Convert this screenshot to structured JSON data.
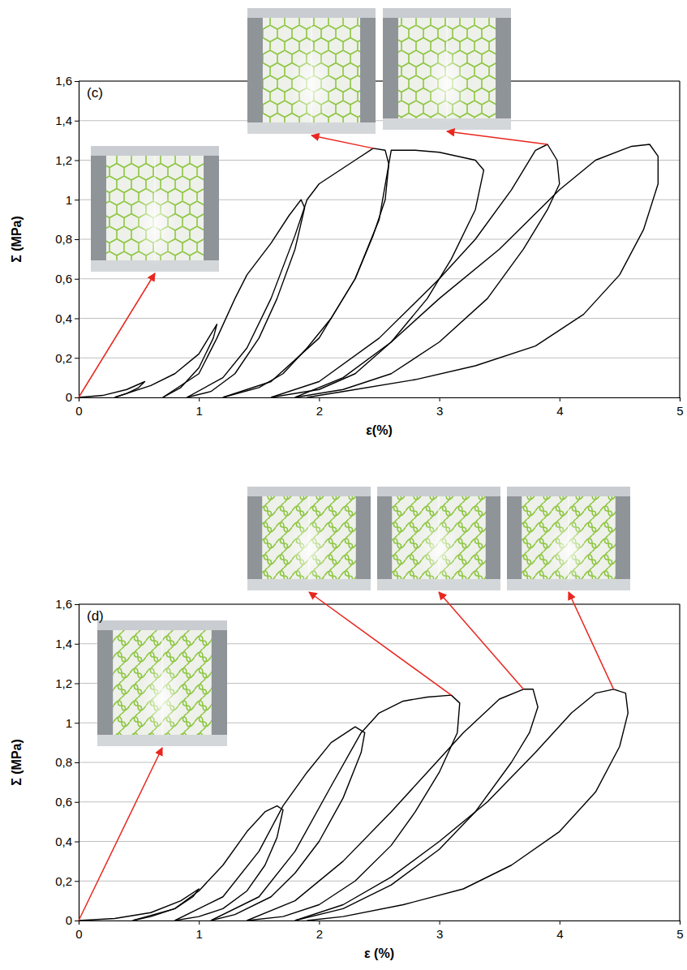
{
  "chart_data": [
    {
      "type": "line",
      "title": "(c)",
      "x_label": "ε(%)",
      "y_label": "Σ (MPa)",
      "xlim": [
        0,
        5
      ],
      "xticks": [
        0,
        1,
        2,
        3,
        4,
        5
      ],
      "ylim": [
        0,
        1.6
      ],
      "yticks": [
        0,
        {
          "value": 0.2,
          "label": "0,2"
        },
        {
          "value": 0.4,
          "label": "0,4"
        },
        {
          "value": 0.6,
          "label": "0,6"
        },
        {
          "value": 0.8,
          "label": "0,8"
        },
        1,
        {
          "value": 1.2,
          "label": "1,2"
        },
        {
          "value": 1.4,
          "label": "1,4"
        },
        {
          "value": 1.6,
          "label": "1,6"
        }
      ],
      "grid": true,
      "series": [
        {
          "color": "#000000",
          "x": [
            0,
            0.2,
            0.4,
            0.55,
            0.5,
            0.4,
            0.3
          ],
          "values": [
            0,
            0.01,
            0.04,
            0.08,
            0.05,
            0.02,
            0
          ]
        },
        {
          "color": "#000000",
          "x": [
            0.3,
            0.6,
            0.8,
            1.0,
            1.15,
            1.12,
            1.0,
            0.85,
            0.7
          ],
          "values": [
            0,
            0.06,
            0.12,
            0.22,
            0.37,
            0.3,
            0.15,
            0.05,
            0
          ]
        },
        {
          "color": "#000000",
          "x": [
            0.7,
            1.0,
            1.15,
            1.3,
            1.4,
            1.5,
            1.6,
            1.75,
            1.85,
            1.88,
            1.8,
            1.65,
            1.5,
            1.3,
            1.1,
            0.9
          ],
          "values": [
            0,
            0.12,
            0.3,
            0.5,
            0.62,
            0.7,
            0.78,
            0.92,
            1.0,
            0.96,
            0.75,
            0.5,
            0.3,
            0.12,
            0.03,
            0
          ]
        },
        {
          "color": "#000000",
          "x": [
            0.9,
            1.2,
            1.4,
            1.6,
            1.8,
            1.9,
            2.0,
            2.1,
            2.3,
            2.45,
            2.55,
            2.58,
            2.55,
            2.45,
            2.3,
            2.1,
            1.9,
            1.7,
            1.5,
            1.2
          ],
          "values": [
            0,
            0.1,
            0.25,
            0.5,
            0.82,
            1.0,
            1.08,
            1.12,
            1.2,
            1.26,
            1.25,
            1.18,
            1.0,
            0.82,
            0.6,
            0.4,
            0.25,
            0.12,
            0.05,
            0
          ]
        },
        {
          "color": "#000000",
          "x": [
            1.2,
            1.6,
            2.0,
            2.3,
            2.5,
            2.6,
            2.8,
            3.0,
            3.3,
            3.37,
            3.3,
            3.1,
            2.9,
            2.6,
            2.3,
            2.0,
            1.6
          ],
          "values": [
            0,
            0.08,
            0.3,
            0.6,
            0.9,
            1.25,
            1.25,
            1.24,
            1.2,
            1.15,
            0.95,
            0.7,
            0.5,
            0.28,
            0.12,
            0.04,
            0
          ]
        },
        {
          "color": "#000000",
          "x": [
            1.6,
            2.0,
            2.5,
            3.0,
            3.3,
            3.6,
            3.8,
            3.9,
            3.98,
            4.0,
            3.9,
            3.7,
            3.4,
            3.0,
            2.6,
            2.2,
            1.8
          ],
          "values": [
            0,
            0.08,
            0.3,
            0.6,
            0.8,
            1.05,
            1.25,
            1.28,
            1.2,
            1.08,
            0.95,
            0.75,
            0.5,
            0.28,
            0.12,
            0.04,
            0
          ]
        },
        {
          "color": "#000000",
          "x": [
            1.8,
            2.2,
            2.6,
            3.0,
            3.5,
            4.0,
            4.3,
            4.6,
            4.75,
            4.82,
            4.82,
            4.7,
            4.5,
            4.2,
            3.8,
            3.3,
            2.8,
            2.2,
            1.9
          ],
          "values": [
            0,
            0.1,
            0.28,
            0.5,
            0.75,
            1.05,
            1.2,
            1.27,
            1.28,
            1.22,
            1.08,
            0.85,
            0.62,
            0.42,
            0.26,
            0.16,
            0.09,
            0.03,
            0
          ]
        }
      ]
    },
    {
      "type": "line",
      "title": "(d)",
      "x_label": "ε (%)",
      "y_label": "Σ (MPa)",
      "xlim": [
        0,
        5
      ],
      "xticks": [
        0,
        1,
        2,
        3,
        4,
        5
      ],
      "ylim": [
        0,
        1.6
      ],
      "yticks": [
        0,
        {
          "value": 0.2,
          "label": "0,2"
        },
        {
          "value": 0.4,
          "label": "0,4"
        },
        {
          "value": 0.6,
          "label": "0,6"
        },
        {
          "value": 0.8,
          "label": "0,8"
        },
        1,
        {
          "value": 1.2,
          "label": "1,2"
        },
        {
          "value": 1.4,
          "label": "1,4"
        },
        {
          "value": 1.6,
          "label": "1,6"
        }
      ],
      "grid": true,
      "series": [
        {
          "color": "#000000",
          "x": [
            0,
            0.3,
            0.6,
            0.85,
            1.0,
            0.95,
            0.8,
            0.6,
            0.45
          ],
          "values": [
            0,
            0.01,
            0.04,
            0.1,
            0.16,
            0.12,
            0.06,
            0.02,
            0
          ]
        },
        {
          "color": "#000000",
          "x": [
            0.45,
            0.8,
            1.0,
            1.2,
            1.4,
            1.55,
            1.65,
            1.7,
            1.65,
            1.55,
            1.4,
            1.2,
            1.0,
            0.8
          ],
          "values": [
            0,
            0.06,
            0.15,
            0.28,
            0.45,
            0.55,
            0.58,
            0.56,
            0.42,
            0.28,
            0.15,
            0.06,
            0.02,
            0
          ]
        },
        {
          "color": "#000000",
          "x": [
            0.8,
            1.2,
            1.5,
            1.7,
            1.9,
            2.1,
            2.3,
            2.38,
            2.35,
            2.2,
            2.0,
            1.8,
            1.6,
            1.3,
            1.1
          ],
          "values": [
            0,
            0.12,
            0.35,
            0.58,
            0.75,
            0.9,
            0.98,
            0.95,
            0.85,
            0.62,
            0.4,
            0.24,
            0.12,
            0.03,
            0
          ]
        },
        {
          "color": "#000000",
          "x": [
            1.1,
            1.5,
            1.8,
            2.1,
            2.35,
            2.5,
            2.7,
            2.9,
            3.1,
            3.17,
            3.15,
            3.0,
            2.8,
            2.6,
            2.3,
            2.0,
            1.7,
            1.4
          ],
          "values": [
            0,
            0.12,
            0.35,
            0.68,
            0.95,
            1.05,
            1.11,
            1.13,
            1.14,
            1.1,
            0.95,
            0.75,
            0.55,
            0.38,
            0.2,
            0.08,
            0.02,
            0
          ]
        },
        {
          "color": "#000000",
          "x": [
            1.4,
            1.8,
            2.2,
            2.6,
            2.9,
            3.2,
            3.5,
            3.7,
            3.78,
            3.82,
            3.75,
            3.6,
            3.3,
            3.0,
            2.6,
            2.2,
            1.8
          ],
          "values": [
            0,
            0.1,
            0.3,
            0.55,
            0.75,
            0.95,
            1.12,
            1.17,
            1.17,
            1.08,
            0.95,
            0.8,
            0.55,
            0.36,
            0.18,
            0.06,
            0
          ]
        },
        {
          "color": "#000000",
          "x": [
            1.8,
            2.2,
            2.6,
            3.0,
            3.4,
            3.8,
            4.1,
            4.3,
            4.45,
            4.55,
            4.57,
            4.5,
            4.3,
            4.0,
            3.6,
            3.2,
            2.7,
            2.2,
            1.9
          ],
          "values": [
            0,
            0.08,
            0.22,
            0.4,
            0.6,
            0.85,
            1.05,
            1.15,
            1.17,
            1.15,
            1.05,
            0.88,
            0.65,
            0.45,
            0.28,
            0.16,
            0.08,
            0.02,
            0
          ]
        }
      ]
    }
  ]
}
